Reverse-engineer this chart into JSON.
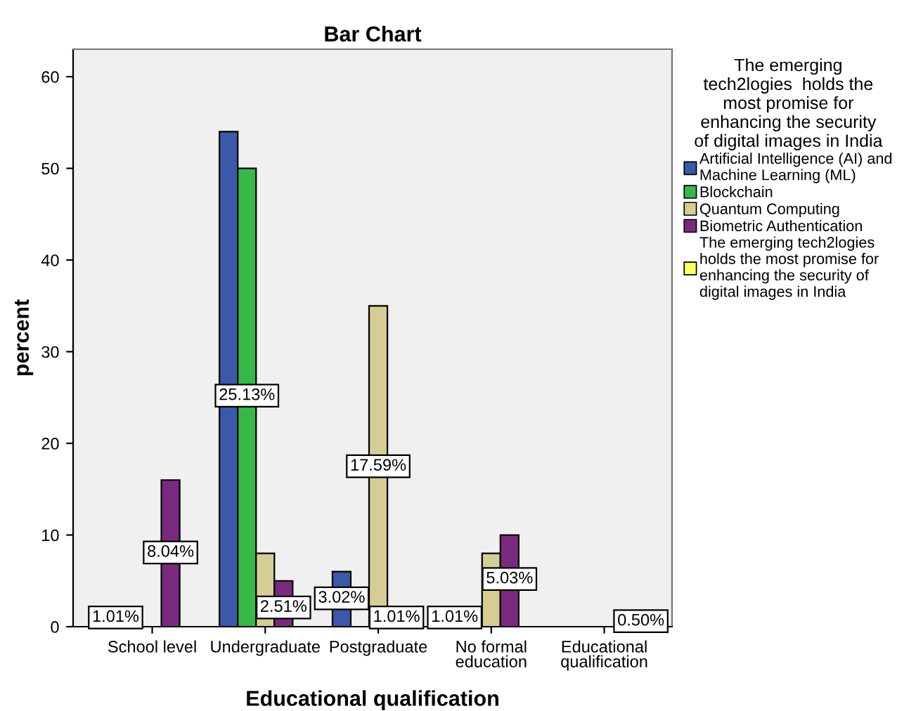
{
  "chart_data": {
    "type": "bar",
    "title": "Bar Chart",
    "xlabel": "Educational qualification",
    "ylabel": "percent",
    "legend_title": "The emerging\ntech2logies  holds the\nmost promise for\nenhancing the security\nof digital images in India",
    "categories": [
      "School level",
      "Undergraduate",
      "Postgraduate",
      "No formal\neducation",
      "Educational\nqualification"
    ],
    "series": [
      {
        "name": "Artificial Intelligence (AI) and\nMachine Learning (ML)",
        "color": "#3c58a8",
        "values": [
          null,
          54,
          6,
          null,
          null
        ]
      },
      {
        "name": "Blockchain",
        "color": "#36b84a",
        "values": [
          null,
          50,
          null,
          null,
          null
        ]
      },
      {
        "name": "Quantum Computing",
        "color": "#d6cc96",
        "values": [
          null,
          8,
          35,
          8,
          null
        ]
      },
      {
        "name": "Biometric Authentication",
        "color": "#7a2a7e",
        "values": [
          16,
          5,
          null,
          10,
          null
        ]
      },
      {
        "name": "The emerging tech2logies\nholds the most promise for\nenhancing the security of\ndigital images in India",
        "color": "#ffff66",
        "values": [
          null,
          null,
          null,
          null,
          null
        ]
      }
    ],
    "annotations": [
      "1.01%",
      "8.04%",
      "25.13%",
      "2.51%",
      "3.02%",
      "17.59%",
      "1.01%",
      "1.01%",
      "5.03%",
      "0.50%"
    ],
    "ylim": [
      0,
      63
    ],
    "yticks": [
      0,
      10,
      20,
      30,
      40,
      50,
      60
    ],
    "grid": false,
    "legend": "right"
  }
}
